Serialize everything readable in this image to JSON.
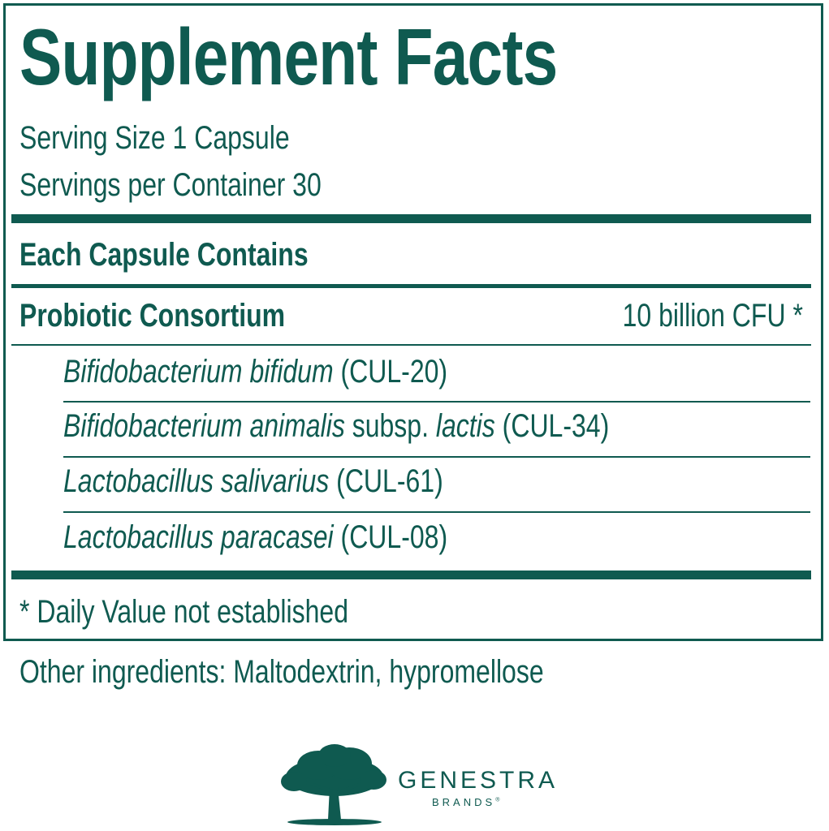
{
  "title": "Supplement Facts",
  "serving_size": "Serving Size 1 Capsule",
  "servings_per_container": "Servings per Container 30",
  "section_header": "Each Capsule Contains",
  "ingredient": {
    "name": "Probiotic Consortium",
    "amount": "10 billion CFU *"
  },
  "strains": [
    [
      {
        "text": "Bifidobacterium bifidum",
        "italic": true
      },
      {
        "text": " (CUL-20)",
        "italic": false
      }
    ],
    [
      {
        "text": "Bifidobacterium animalis",
        "italic": true
      },
      {
        "text": " subsp. ",
        "italic": false
      },
      {
        "text": "lactis",
        "italic": true
      },
      {
        "text": " (CUL-34)",
        "italic": false
      }
    ],
    [
      {
        "text": "Lactobacillus salivarius",
        "italic": true
      },
      {
        "text": " (CUL-61)",
        "italic": false
      }
    ],
    [
      {
        "text": "Lactobacillus paracasei",
        "italic": true
      },
      {
        "text": " (CUL-08)",
        "italic": false
      }
    ]
  ],
  "footnote": "* Daily Value not established",
  "other_ingredients": "Other ingredients: Maltodextrin, hypromellose",
  "logo": {
    "brand": "GENESTRA",
    "sub": "BRANDS",
    "mark": "®"
  },
  "colors": {
    "primary": "#0f5a50"
  }
}
